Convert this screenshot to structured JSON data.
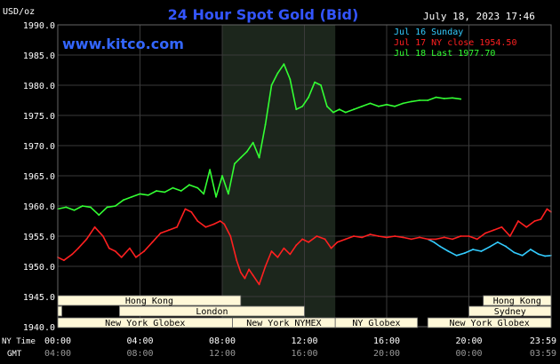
{
  "header": {
    "title": "24 Hour Spot Gold (Bid)",
    "timestamp": "July 18, 2023 17:46",
    "y_unit": "USD/oz",
    "brand": "www.kitco.com"
  },
  "legend": {
    "placement": "top-right",
    "entries": [
      {
        "label": "Jul 16 Sunday",
        "color": "#33ccff"
      },
      {
        "label": "Jul 17 NY close 1954.50",
        "color": "#ff2020"
      },
      {
        "label": "Jul 18 Last 1977.70",
        "color": "#33ff33"
      }
    ]
  },
  "axis_labels": {
    "ny_time": "NY Time",
    "gmt": "GMT"
  },
  "colors": {
    "background": "#000000",
    "grid": "#3a3a3a",
    "axis_text": "#ffffff",
    "title": "#3355ff",
    "brand": "#3366ff",
    "shade": "#1c261c",
    "session_fill": "#fff8d8",
    "session_text": "#000000"
  },
  "sessions": {
    "row1": [
      {
        "label": "Hong Kong",
        "start": 0,
        "end": 8.9
      },
      {
        "label": "Hong Kong",
        "start": 20.7,
        "end": 24
      }
    ],
    "row2": [
      {
        "label": "",
        "start": 0,
        "end": 0.2
      },
      {
        "label": "London",
        "start": 3.0,
        "end": 12.0
      },
      {
        "label": "Sydney",
        "start": 20.0,
        "end": 24
      }
    ],
    "row3": [
      {
        "label": "New York Globex",
        "start": 0,
        "end": 8.5
      },
      {
        "label": "New York NYMEX",
        "start": 8.5,
        "end": 13.5
      },
      {
        "label": "NY Globex",
        "start": 13.5,
        "end": 17.5
      },
      {
        "label": "New York Globex",
        "start": 18.0,
        "end": 24
      }
    ]
  },
  "chart_data": {
    "type": "line",
    "title": "24 Hour Spot Gold (Bid)",
    "ylabel": "USD/oz",
    "xlim": [
      0,
      24
    ],
    "ylim": [
      1940,
      1990
    ],
    "grid": true,
    "yticks": [
      1940,
      1945,
      1950,
      1955,
      1960,
      1965,
      1970,
      1975,
      1980,
      1985,
      1990
    ],
    "ytick_labels": [
      "1940.0",
      "1945.0",
      "1950.0",
      "1955.0",
      "1960.0",
      "1965.0",
      "1970.0",
      "1975.0",
      "1980.0",
      "1985.0",
      "1990.0"
    ],
    "xticks": [
      0,
      4,
      8,
      12,
      16,
      20,
      24
    ],
    "xtick_labels_ny": [
      "00:00",
      "04:00",
      "08:00",
      "12:00",
      "16:00",
      "20:00",
      "23:59"
    ],
    "xtick_labels_gmt": [
      "04:00",
      "08:00",
      "12:00",
      "16:00",
      "20:00",
      "00:00",
      "03:59"
    ],
    "shaded_range": [
      8.0,
      13.5
    ],
    "series": [
      {
        "name": "Jul 16 Sunday",
        "color": "#33ccff",
        "x": [
          18.0,
          18.3,
          18.6,
          19.0,
          19.4,
          19.8,
          20.2,
          20.6,
          21.0,
          21.4,
          21.8,
          22.2,
          22.6,
          23.0,
          23.4,
          23.7,
          24.0
        ],
        "y": [
          1954.5,
          1954.0,
          1953.3,
          1952.5,
          1951.8,
          1952.2,
          1952.8,
          1952.5,
          1953.2,
          1954.0,
          1953.3,
          1952.3,
          1951.8,
          1952.8,
          1952.0,
          1951.7,
          1951.8
        ]
      },
      {
        "name": "Jul 17 NY close 1954.50",
        "color": "#ff2020",
        "x": [
          0,
          0.3,
          0.7,
          1.0,
          1.4,
          1.8,
          2.2,
          2.5,
          2.8,
          3.1,
          3.5,
          3.8,
          4.2,
          4.6,
          5.0,
          5.4,
          5.8,
          6.2,
          6.5,
          6.8,
          7.2,
          7.6,
          7.9,
          8.1,
          8.4,
          8.7,
          8.9,
          9.1,
          9.3,
          9.5,
          9.8,
          10.1,
          10.4,
          10.7,
          11.0,
          11.3,
          11.6,
          11.9,
          12.2,
          12.6,
          13.0,
          13.3,
          13.6,
          14.0,
          14.4,
          14.8,
          15.2,
          15.6,
          16.0,
          16.4,
          16.8,
          17.2,
          17.6,
          18.0,
          18.4,
          18.8,
          19.2,
          19.6,
          20.0,
          20.4,
          20.8,
          21.2,
          21.6,
          22.0,
          22.4,
          22.8,
          23.2,
          23.5,
          23.8,
          24.0
        ],
        "y": [
          1951.5,
          1951.0,
          1952.0,
          1953.0,
          1954.5,
          1956.5,
          1955.0,
          1953.0,
          1952.5,
          1951.5,
          1953.0,
          1951.5,
          1952.5,
          1954.0,
          1955.5,
          1956.0,
          1956.5,
          1959.5,
          1959.0,
          1957.5,
          1956.5,
          1957.0,
          1957.5,
          1957.0,
          1955.0,
          1951.0,
          1949.0,
          1948.0,
          1949.5,
          1948.5,
          1947.0,
          1950.0,
          1952.5,
          1951.5,
          1953.0,
          1952.0,
          1953.5,
          1954.5,
          1954.0,
          1955.0,
          1954.5,
          1953.0,
          1954.0,
          1954.5,
          1955.0,
          1954.8,
          1955.3,
          1955.0,
          1954.8,
          1955.0,
          1954.8,
          1954.5,
          1954.8,
          1954.5,
          1954.5,
          1954.8,
          1954.5,
          1955.0,
          1955.0,
          1954.5,
          1955.5,
          1956.0,
          1956.5,
          1955.0,
          1957.5,
          1956.5,
          1957.5,
          1957.8,
          1959.5,
          1959.0
        ]
      },
      {
        "name": "Jul 18 Last 1977.70",
        "color": "#33ff33",
        "x": [
          0,
          0.4,
          0.8,
          1.2,
          1.6,
          2.0,
          2.4,
          2.8,
          3.2,
          3.6,
          4.0,
          4.4,
          4.8,
          5.2,
          5.6,
          6.0,
          6.4,
          6.8,
          7.1,
          7.4,
          7.7,
          8.0,
          8.3,
          8.6,
          8.9,
          9.2,
          9.5,
          9.8,
          10.1,
          10.4,
          10.7,
          11.0,
          11.3,
          11.6,
          11.9,
          12.2,
          12.5,
          12.8,
          13.1,
          13.4,
          13.7,
          14.0,
          14.4,
          14.8,
          15.2,
          15.6,
          16.0,
          16.4,
          16.8,
          17.2,
          17.6,
          18.0,
          18.4,
          18.8,
          19.2,
          19.6
        ],
        "y": [
          1959.5,
          1959.8,
          1959.3,
          1960.0,
          1959.8,
          1958.5,
          1959.8,
          1960.0,
          1961.0,
          1961.5,
          1962.0,
          1961.8,
          1962.5,
          1962.3,
          1963.0,
          1962.5,
          1963.5,
          1963.0,
          1962.0,
          1966.0,
          1961.5,
          1965.0,
          1962.0,
          1967.0,
          1968.0,
          1969.0,
          1970.5,
          1968.0,
          1973.5,
          1980.0,
          1982.0,
          1983.5,
          1981.0,
          1976.0,
          1976.5,
          1978.0,
          1980.5,
          1980.0,
          1976.5,
          1975.5,
          1976.0,
          1975.5,
          1976.0,
          1976.5,
          1977.0,
          1976.5,
          1976.8,
          1976.5,
          1977.0,
          1977.3,
          1977.5,
          1977.5,
          1978.0,
          1977.8,
          1977.9,
          1977.7
        ]
      }
    ]
  }
}
